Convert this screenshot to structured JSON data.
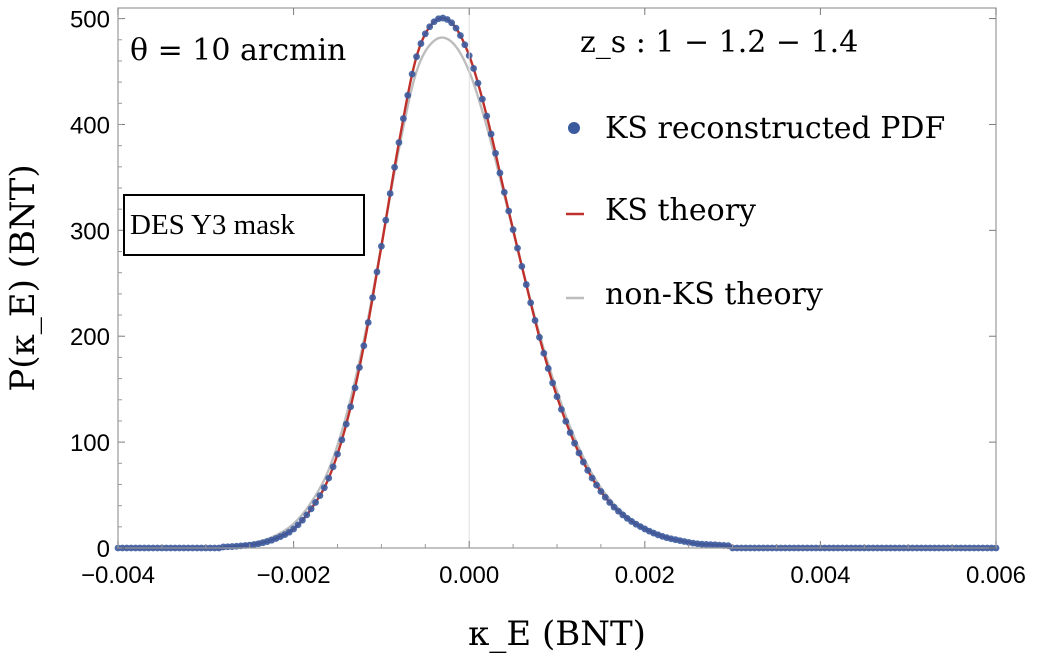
{
  "chart_data": {
    "type": "line",
    "title": "",
    "xlabel": "κ_E (BNT)",
    "ylabel": "P(κ_E) (BNT)",
    "xlim": [
      -0.004,
      0.006
    ],
    "ylim": [
      0,
      510
    ],
    "x_ticks": [
      -0.004,
      -0.002,
      0.0,
      0.002,
      0.004,
      0.006
    ],
    "x_tick_labels": [
      "-0.004",
      "-0.002",
      "0.000",
      "0.002",
      "0.004",
      "0.006"
    ],
    "y_ticks": [
      0,
      100,
      200,
      300,
      400,
      500
    ],
    "y_tick_labels": [
      "0",
      "100",
      "200",
      "300",
      "400",
      "500"
    ],
    "grid": false,
    "legend_position": "right",
    "annotations": {
      "theta": "θ = 10 arcmin",
      "redshift": "z_s : 1 − 1.2 − 1.4",
      "mask": "DES Y3 mask"
    },
    "series": [
      {
        "name": "KS reconstructed PDF",
        "kind": "scatter",
        "color": "#3b5b9e",
        "x": [
          -0.0028,
          -0.0026,
          -0.0024,
          -0.0022,
          -0.002,
          -0.0018,
          -0.0016,
          -0.0014,
          -0.0012,
          -0.001,
          -0.0008,
          -0.0006,
          -0.0004,
          -0.0002,
          0.0,
          0.0002,
          0.0004,
          0.0006,
          0.0008,
          0.001,
          0.0012,
          0.0014,
          0.0016,
          0.0018,
          0.002,
          0.0022,
          0.0024,
          0.0026,
          0.0028,
          0.003
        ],
        "y": [
          1,
          2,
          4,
          9,
          18,
          37,
          66,
          117,
          191,
          285,
          383,
          464,
          497,
          496,
          465,
          408,
          336,
          266,
          199,
          143,
          99,
          66,
          43,
          28,
          18,
          11,
          7,
          4,
          3,
          2
        ]
      },
      {
        "name": "KS theory",
        "kind": "line",
        "color": "#c0302a",
        "x": [
          -0.0028,
          -0.0026,
          -0.0024,
          -0.0022,
          -0.002,
          -0.0018,
          -0.0016,
          -0.0014,
          -0.0012,
          -0.001,
          -0.0008,
          -0.0006,
          -0.0004,
          -0.0002,
          0.0,
          0.0002,
          0.0004,
          0.0006,
          0.0008,
          0.001,
          0.0012,
          0.0014,
          0.0016,
          0.0018,
          0.002,
          0.0022,
          0.0024,
          0.0026,
          0.0028,
          0.003
        ],
        "y": [
          1,
          2,
          4,
          9,
          18,
          37,
          66,
          117,
          191,
          285,
          383,
          464,
          497,
          496,
          465,
          408,
          336,
          266,
          199,
          143,
          99,
          66,
          43,
          28,
          18,
          11,
          7,
          4,
          3,
          2
        ]
      },
      {
        "name": "non-KS theory",
        "kind": "line",
        "color": "#bdbdbd",
        "x": [
          -0.0028,
          -0.0026,
          -0.0024,
          -0.0022,
          -0.002,
          -0.0018,
          -0.0016,
          -0.0014,
          -0.0012,
          -0.001,
          -0.0008,
          -0.0006,
          -0.0004,
          -0.0002,
          0.0,
          0.0002,
          0.0004,
          0.0006,
          0.0008,
          0.001,
          0.0012,
          0.0014,
          0.0016,
          0.0018,
          0.002,
          0.0022,
          0.0024,
          0.0026,
          0.0028,
          0.003
        ],
        "y": [
          1,
          3,
          6,
          12,
          23,
          43,
          74,
          125,
          196,
          286,
          377,
          450,
          479,
          478,
          450,
          398,
          333,
          266,
          202,
          148,
          104,
          70,
          46,
          30,
          19,
          12,
          7,
          4,
          3,
          2
        ]
      }
    ]
  }
}
